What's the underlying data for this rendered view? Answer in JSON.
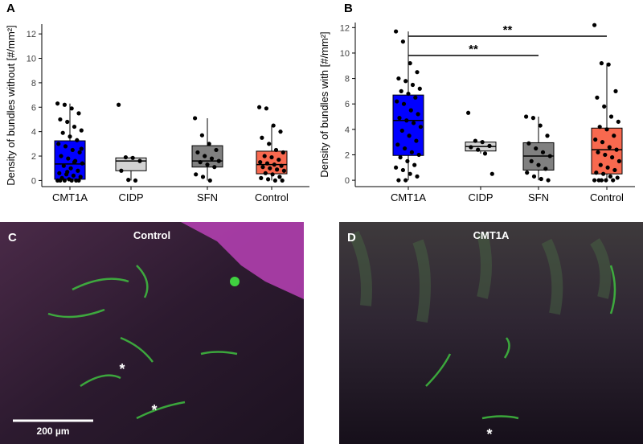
{
  "chart_data": [
    {
      "type": "box",
      "panel": "A",
      "ylabel": "Density of bundles without [#/mm²]",
      "categories": [
        "CMT1A",
        "CIDP",
        "SFN",
        "Control"
      ],
      "colors": [
        "#0000ff",
        "#d3d3d3",
        "#808080",
        "#f8694f"
      ],
      "boxes": [
        {
          "min": 0,
          "q1": 0.1,
          "median": 1.35,
          "q3": 3.25,
          "max": 6.3
        },
        {
          "min": 0,
          "q1": 0.8,
          "median": 1.6,
          "q3": 1.85,
          "max": 1.95
        },
        {
          "min": 0,
          "q1": 1.1,
          "median": 1.6,
          "q3": 2.85,
          "max": 5.1
        },
        {
          "min": 0,
          "q1": 0.55,
          "median": 1.3,
          "q3": 2.4,
          "max": 4.5
        }
      ],
      "points": [
        [
          6.3,
          6.2,
          5.9,
          5.5,
          5.0,
          4.8,
          4.4,
          4.1,
          3.9,
          3.6,
          3.3,
          3.0,
          2.8,
          2.5,
          2.3,
          2.0,
          1.8,
          1.6,
          1.4,
          1.2,
          1.0,
          0.8,
          0.6,
          0.5,
          0.4,
          0.3,
          0.2,
          0.1,
          0,
          0,
          0,
          0,
          0,
          0,
          0.7,
          1.5,
          2.6
        ],
        [
          6.2,
          1.9,
          1.85,
          1.6,
          0.8,
          0.05,
          0
        ],
        [
          5.1,
          3.7,
          3.0,
          2.5,
          2.3,
          2.0,
          1.8,
          1.6,
          1.5,
          1.3,
          1.1,
          0.5,
          0.3,
          0
        ],
        [
          6.0,
          5.9,
          4.5,
          4.0,
          3.5,
          3.0,
          2.5,
          2.3,
          2.0,
          1.9,
          1.7,
          1.5,
          1.4,
          1.3,
          1.2,
          1.1,
          1.0,
          0.9,
          0.8,
          0.6,
          0.5,
          0.3,
          0.2,
          0.1,
          0,
          0
        ]
      ],
      "ylim": [
        -0.5,
        12.8
      ],
      "yticks": [
        0,
        2,
        4,
        6,
        8,
        10,
        12
      ]
    },
    {
      "type": "box",
      "panel": "B",
      "ylabel": "Density of bundles with [#/mm²]",
      "categories": [
        "CMT1A",
        "CIDP",
        "SFN",
        "Control"
      ],
      "colors": [
        "#0000ff",
        "#d3d3d3",
        "#808080",
        "#f8694f"
      ],
      "boxes": [
        {
          "min": 0,
          "q1": 1.95,
          "median": 4.7,
          "q3": 6.7,
          "max": 11.7
        },
        {
          "min": 2.1,
          "q1": 2.3,
          "median": 2.65,
          "q3": 3.0,
          "max": 3.1
        },
        {
          "min": 0,
          "q1": 0.8,
          "median": 1.9,
          "q3": 2.95,
          "max": 5.0
        },
        {
          "min": 0,
          "q1": 0.5,
          "median": 2.4,
          "q3": 4.1,
          "max": 9.2
        }
      ],
      "points": [
        [
          11.7,
          10.9,
          9.2,
          8.5,
          8.0,
          7.8,
          7.5,
          7.2,
          7.0,
          6.8,
          6.5,
          6.2,
          6.0,
          5.5,
          5.2,
          4.9,
          4.7,
          4.5,
          4.2,
          3.9,
          3.5,
          3.1,
          2.8,
          2.5,
          2.2,
          2.0,
          1.8,
          1.5,
          1.2,
          1.0,
          0.8,
          0.5,
          0.3,
          0,
          0
        ],
        [
          5.3,
          3.1,
          3.0,
          2.7,
          2.6,
          2.4,
          2.1,
          0.5
        ],
        [
          5.0,
          4.9,
          4.3,
          3.5,
          2.9,
          2.5,
          2.2,
          1.9,
          1.5,
          1.2,
          0.9,
          0.6,
          0.3,
          0.1,
          0
        ],
        [
          12.2,
          9.2,
          9.1,
          7.0,
          6.5,
          5.8,
          5.0,
          4.6,
          4.2,
          4.0,
          3.5,
          3.2,
          3.0,
          2.6,
          2.4,
          2.2,
          2.0,
          1.8,
          1.5,
          1.2,
          1.0,
          0.8,
          0.6,
          0.5,
          0.3,
          0.2,
          0,
          0,
          0,
          0,
          0
        ]
      ],
      "annotations": [
        {
          "text": "**",
          "from": 0,
          "to": 3
        },
        {
          "text": "**",
          "from": 0,
          "to": 2
        }
      ],
      "ylim": [
        -0.5,
        12.4
      ],
      "yticks": [
        0,
        2,
        4,
        6,
        8,
        10,
        12
      ]
    }
  ],
  "images": [
    {
      "panel": "C",
      "title": "Control",
      "scale_bar": "200 µm",
      "markers": [
        "*",
        "*"
      ]
    },
    {
      "panel": "D",
      "title": "CMT1A",
      "markers": [
        "*"
      ]
    }
  ]
}
